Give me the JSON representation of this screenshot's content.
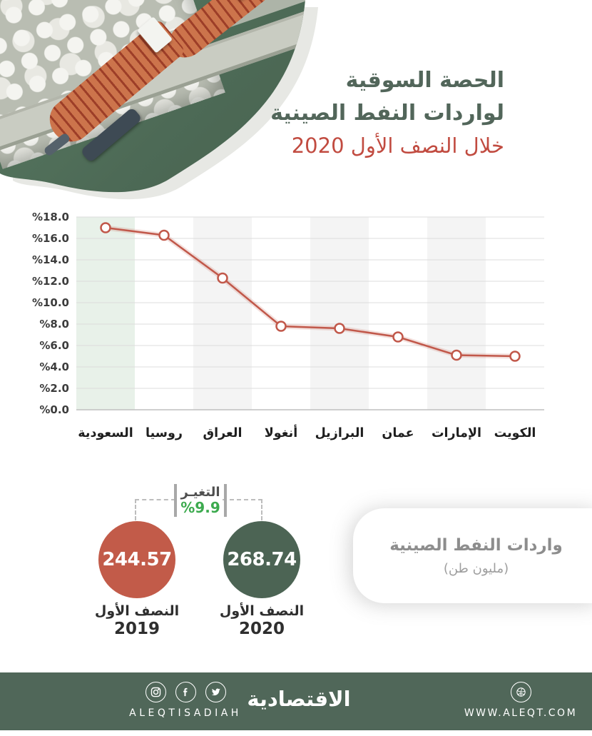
{
  "title": {
    "line1": "الحصة السوقية",
    "line2": "لواردات النفط الصينية",
    "line3": "خلال النصف الأول 2020"
  },
  "chart_data": {
    "type": "line",
    "categories": [
      "السعودية",
      "روسيا",
      "العراق",
      "أنغولا",
      "البرازيل",
      "عمان",
      "الإمارات",
      "الكويت"
    ],
    "values": [
      17.0,
      16.3,
      12.3,
      7.8,
      7.6,
      6.8,
      5.1,
      5.0
    ],
    "unit": "percent market share",
    "title": "الحصة السوقية لواردات النفط الصينية خلال النصف الأول 2020",
    "xlabel": "",
    "ylabel": "",
    "ylim": [
      0,
      18
    ],
    "ytick_step": 2,
    "ytick_labels": [
      "%0.0",
      "%2.0",
      "%4.0",
      "%6.0",
      "%8.0",
      "%10.0",
      "%12.0",
      "%14.0",
      "%16.0",
      "%18.0"
    ],
    "grid": true,
    "legend": "none",
    "line_color": "#c1584a",
    "marker": "open-circle",
    "stripe_green_color": "#e8f1e9",
    "stripe_gray_color": "#f4f4f4",
    "green_striped_columns": [
      0
    ],
    "gray_striped_columns": [
      2,
      4,
      6
    ],
    "gridline_color": "#dcdcdc",
    "axis_label_color": "#3c3c3c",
    "category_label_color": "#1e1e1e"
  },
  "comparison": {
    "change_label": "التغيـر",
    "change_value": "%9.9",
    "change_value_color": "#3caa4e",
    "left_circle": {
      "value": "244.57",
      "caption_line1": "النصف الأول",
      "caption_line2": "2019",
      "color": "#c25b49"
    },
    "right_circle": {
      "value": "268.74",
      "caption_line1": "النصف الأول",
      "caption_line2": "2020",
      "color": "#4c6454"
    }
  },
  "info_card": {
    "title": "واردات النفط الصينية",
    "subtitle": "(مليون طن)"
  },
  "footer": {
    "background_color": "#506759",
    "social_icons": [
      "instagram-icon",
      "facebook-icon",
      "twitter-icon"
    ],
    "handle": "ALEQTISADIAH",
    "brand_arabic": "الاقتصادية",
    "website_icon": "ball-icon",
    "website": "WWW.ALEQT.COM"
  }
}
